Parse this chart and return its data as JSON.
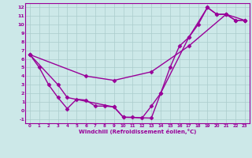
{
  "xlabel": "Windchill (Refroidissement éolien,°C)",
  "line1_x": [
    0,
    1,
    2,
    3,
    4,
    5,
    6,
    7,
    8,
    9,
    10,
    11,
    12,
    13,
    14,
    15,
    16,
    17,
    18,
    19,
    20,
    21,
    22,
    23
  ],
  "line1_y": [
    6.5,
    5.0,
    3.0,
    1.5,
    0.2,
    1.3,
    1.2,
    0.5,
    0.5,
    0.4,
    -0.8,
    -0.8,
    -0.9,
    0.5,
    2.0,
    5.0,
    7.5,
    8.5,
    10.0,
    12.0,
    11.2,
    11.2,
    10.5,
    10.5
  ],
  "line2_x": [
    0,
    3,
    4,
    9,
    10,
    13,
    14,
    17,
    19,
    20,
    21,
    22,
    23
  ],
  "line2_y": [
    6.5,
    3.0,
    1.5,
    0.4,
    -0.8,
    -0.9,
    2.0,
    8.5,
    12.0,
    11.2,
    11.2,
    10.5,
    10.5
  ],
  "line3_x": [
    0,
    6,
    9,
    13,
    17,
    21,
    23
  ],
  "line3_y": [
    6.5,
    4.0,
    3.5,
    4.5,
    7.5,
    11.2,
    10.5
  ],
  "color": "#990099",
  "bg_color": "#cce8e8",
  "grid_color": "#aacccc",
  "xlim": [
    -0.5,
    23.5
  ],
  "ylim": [
    -1.5,
    12.5
  ],
  "xticks": [
    0,
    1,
    2,
    3,
    4,
    5,
    6,
    7,
    8,
    9,
    10,
    11,
    12,
    13,
    14,
    15,
    16,
    17,
    18,
    19,
    20,
    21,
    22,
    23
  ],
  "yticks": [
    -1,
    0,
    1,
    2,
    3,
    4,
    5,
    6,
    7,
    8,
    9,
    10,
    11,
    12
  ],
  "marker": "D",
  "markersize": 2.5,
  "linewidth": 1.0
}
